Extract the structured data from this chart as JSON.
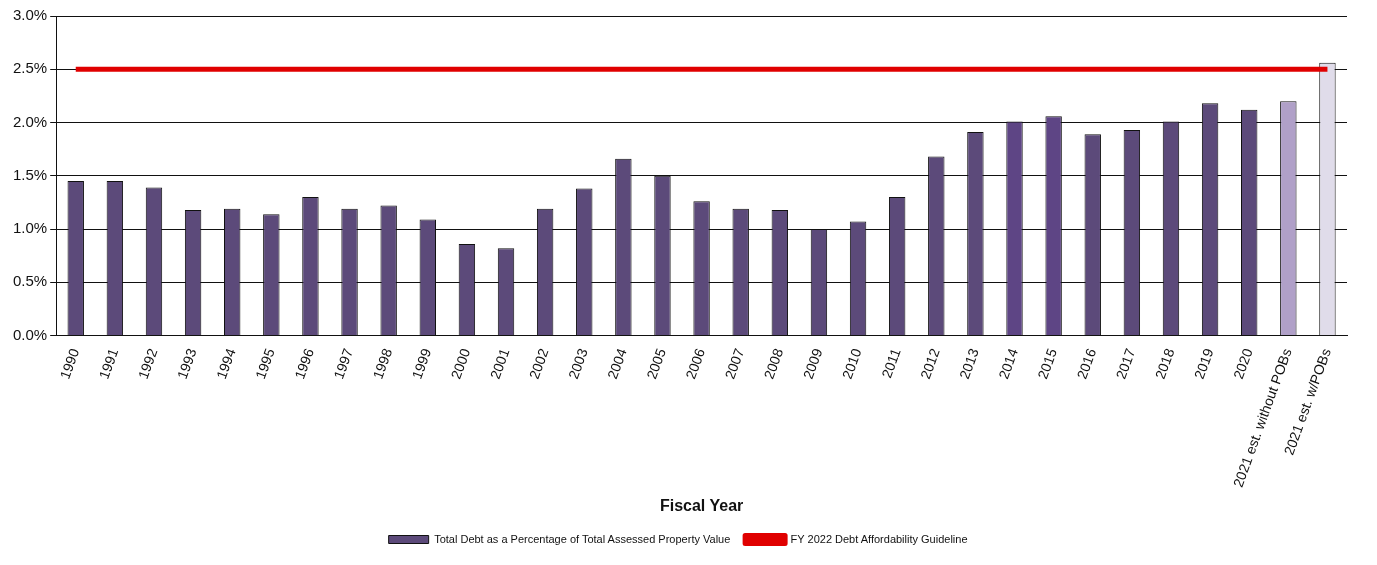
{
  "chart_data": {
    "type": "bar",
    "xlabel": "Fiscal Year",
    "categories": [
      "1990",
      "1991",
      "1992",
      "1993",
      "1994",
      "1995",
      "1996",
      "1997",
      "1998",
      "1999",
      "2000",
      "2001",
      "2002",
      "2003",
      "2004",
      "2005",
      "2006",
      "2007",
      "2008",
      "2009",
      "2010",
      "2011",
      "2012",
      "2013",
      "2014",
      "2015",
      "2016",
      "2017",
      "2018",
      "2019",
      "2020",
      "2021 est. without POBs",
      "2021 est. w/POBs"
    ],
    "series": [
      {
        "name": "Total Debt as a Percentage of Total Assessed Property Value",
        "colors": [
          "#5c4a7a",
          "#5c4a7a",
          "#5c4a7a",
          "#5c4a7a",
          "#5c4a7a",
          "#5c4a7a",
          "#5c4a7a",
          "#5c4a7a",
          "#5c4a7a",
          "#5c4a7a",
          "#5c4a7a",
          "#5c4a7a",
          "#5c4a7a",
          "#5c4a7a",
          "#5c4a7a",
          "#5c4a7a",
          "#5c4a7a",
          "#5c4a7a",
          "#5c4a7a",
          "#5c4a7a",
          "#5c4a7a",
          "#5c4a7a",
          "#5c4a7a",
          "#5c4a7a",
          "#5e4585",
          "#5e4585",
          "#5c4a7a",
          "#5c4a7a",
          "#5c4a7a",
          "#5c4a7a",
          "#5c4a7a",
          "#b0a0c8",
          "#e0dcea"
        ],
        "values": [
          1.45,
          1.45,
          1.39,
          1.18,
          1.19,
          1.14,
          1.3,
          1.19,
          1.22,
          1.09,
          0.86,
          0.82,
          1.19,
          1.38,
          1.66,
          1.5,
          1.26,
          1.19,
          1.18,
          1.0,
          1.07,
          1.3,
          1.68,
          1.91,
          2.01,
          2.06,
          1.89,
          1.93,
          2.01,
          2.18,
          2.12,
          2.2,
          2.56
        ]
      },
      {
        "type": "line",
        "name": "FY 2022 Debt Affordability Guideline",
        "color": "#e00000",
        "values": [
          2.5,
          2.5,
          2.5,
          2.5,
          2.5,
          2.5,
          2.5,
          2.5,
          2.5,
          2.5,
          2.5,
          2.5,
          2.5,
          2.5,
          2.5,
          2.5,
          2.5,
          2.5,
          2.5,
          2.5,
          2.5,
          2.5,
          2.5,
          2.5,
          2.5,
          2.5,
          2.5,
          2.5,
          2.5,
          2.5,
          2.5,
          2.5,
          2.5
        ]
      }
    ],
    "ylim": [
      0,
      3
    ],
    "yticks": [
      {
        "value": 0,
        "label": "0.0%"
      },
      {
        "value": 0.5,
        "label": "0.5%"
      },
      {
        "value": 1,
        "label": "1.0%"
      },
      {
        "value": 1.5,
        "label": "1.5%"
      },
      {
        "value": 2,
        "label": "2.0%"
      },
      {
        "value": 2.5,
        "label": "2.5%"
      },
      {
        "value": 3,
        "label": "3.0%"
      }
    ],
    "grid": "y",
    "legend": "bottom",
    "marker": "none",
    "line_style": "solid"
  }
}
